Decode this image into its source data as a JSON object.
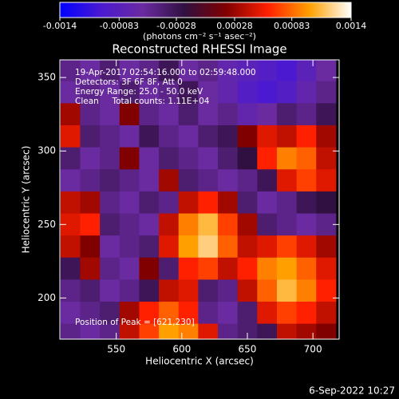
{
  "chart_data": {
    "type": "heatmap",
    "title": "Reconstructed RHESSI Image",
    "x_label": "Heliocentric X (arcsec)",
    "y_label": "Heliocentric Y (arcsec)",
    "xlim": [
      507,
      720
    ],
    "ylim": [
      172,
      362
    ],
    "xticks": [
      550,
      600,
      650,
      700
    ],
    "yticks": [
      200,
      250,
      300,
      350
    ],
    "x": [
      515,
      530,
      545,
      560,
      575,
      590,
      605,
      620,
      635,
      650,
      665,
      680,
      695,
      710
    ],
    "y": [
      355,
      340,
      325,
      310,
      295,
      280,
      265,
      250,
      235,
      220,
      205,
      190,
      175
    ],
    "z": [
      [
        -0.0005,
        -0.0006,
        -0.0004,
        -0.0006,
        -0.0005,
        -0.0003,
        -0.0006,
        -0.0005,
        -0.0007,
        -0.0008,
        -0.0009,
        -0.001,
        -0.0008,
        -0.0006
      ],
      [
        -0.0006,
        -0.0005,
        -0.0006,
        -0.0004,
        -0.0006,
        -0.0005,
        -0.0003,
        -0.0006,
        -0.0007,
        -0.0009,
        -0.001,
        -0.0009,
        -0.0007,
        -0.0005
      ],
      [
        0.0003,
        -0.0005,
        -0.0006,
        0.0002,
        -0.0005,
        -0.0006,
        -0.0004,
        -0.0006,
        -0.0005,
        -0.0007,
        -0.0006,
        -0.0004,
        -0.0005,
        -0.0003
      ],
      [
        0.0005,
        -0.0004,
        -0.0005,
        -0.0006,
        -0.0003,
        -0.0005,
        -0.0006,
        -0.0004,
        -0.0003,
        0.0002,
        0.0005,
        0.0004,
        0.0006,
        0.0003
      ],
      [
        -0.0004,
        -0.0006,
        -0.0005,
        0.0002,
        -0.0006,
        -0.0004,
        -0.0005,
        -0.0006,
        -0.0004,
        -0.0002,
        0.0006,
        0.0009,
        0.0008,
        0.0004
      ],
      [
        -0.0006,
        -0.0005,
        -0.0004,
        -0.0005,
        -0.0006,
        0.0003,
        -0.0004,
        -0.0005,
        -0.0006,
        -0.0005,
        -0.0003,
        0.0005,
        0.0007,
        0.0005
      ],
      [
        0.0004,
        0.0003,
        -0.0005,
        -0.0006,
        -0.0004,
        -0.0005,
        0.0004,
        0.0006,
        0.0003,
        -0.0004,
        -0.0006,
        -0.0005,
        -0.0003,
        -0.0002
      ],
      [
        0.0005,
        0.0006,
        -0.0004,
        -0.0005,
        -0.0006,
        0.0004,
        0.0009,
        0.0011,
        0.0007,
        0.0003,
        -0.0004,
        -0.0005,
        -0.0006,
        -0.0005
      ],
      [
        0.0004,
        0.0002,
        -0.0006,
        -0.0005,
        -0.0004,
        0.0005,
        0.001,
        0.0012,
        0.0008,
        0.0004,
        0.0005,
        0.0007,
        0.0005,
        0.0003
      ],
      [
        -0.0003,
        0.0003,
        -0.0005,
        -0.0006,
        0.0002,
        -0.0004,
        0.0006,
        0.0007,
        0.0004,
        0.0006,
        0.0009,
        0.001,
        0.0008,
        0.0005
      ],
      [
        -0.0005,
        -0.0004,
        -0.0006,
        -0.0005,
        -0.0003,
        0.0004,
        0.0005,
        -0.0004,
        -0.0005,
        0.0004,
        0.0008,
        0.0011,
        0.0009,
        0.0006
      ],
      [
        -0.0006,
        -0.0005,
        -0.0004,
        0.0003,
        0.0006,
        0.0008,
        0.0006,
        -0.0005,
        -0.0006,
        -0.0004,
        0.0005,
        0.0007,
        0.0006,
        0.0004
      ],
      [
        -0.0005,
        -0.0006,
        -0.0005,
        0.0004,
        0.0007,
        0.001,
        0.0009,
        0.0005,
        -0.0005,
        -0.0004,
        -0.0003,
        0.0004,
        0.0003,
        0.0002
      ]
    ],
    "colorbar": {
      "lim": [
        -0.0014,
        0.0014
      ],
      "ticks": [
        -0.0014,
        -0.00083,
        -0.00028,
        0.00028,
        0.00083,
        0.0014
      ],
      "label": "(photons cm⁻² s⁻¹ asec⁻²)",
      "colors": [
        "#0000ff",
        "#4b1ad0",
        "#6a2aa0",
        "#301040",
        "#800000",
        "#ff2000",
        "#ffa000",
        "#ffffff"
      ]
    },
    "annotations": [
      "19-Apr-2017 02:54:16.000 to 02:59:48.000",
      "Detectors: 3F 6F 8F, Att 0",
      "Energy Range: 25.0 - 50.0 keV",
      "Clean     Total counts: 1.11E+04"
    ],
    "peak_label": "Position of Peak = [621,230]",
    "timestamp": "6-Sep-2022 10:27"
  }
}
